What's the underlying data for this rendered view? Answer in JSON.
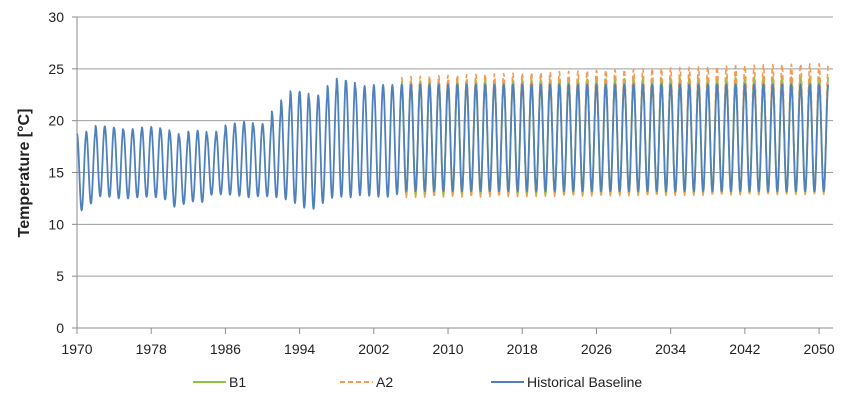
{
  "chart_data": {
    "type": "line",
    "title": "",
    "xlabel": "",
    "ylabel": "Temperature [°C]",
    "xlim": [
      1970,
      2051.5
    ],
    "ylim": [
      0,
      30
    ],
    "x_ticks": [
      1970,
      1978,
      1986,
      1994,
      2002,
      2010,
      2018,
      2026,
      2034,
      2042,
      2050
    ],
    "y_ticks": [
      0,
      5,
      10,
      15,
      20,
      25,
      30
    ],
    "grid": "horizontal",
    "legend_position": "bottom",
    "series": [
      {
        "name": "B1",
        "color": "#8dc540",
        "style": "solid",
        "x_range": [
          2005,
          2051
        ],
        "annual_peaks": [
          [
            2005,
            23.8
          ],
          [
            2015,
            23.9
          ],
          [
            2025,
            24.0
          ],
          [
            2035,
            24.1
          ],
          [
            2045,
            24.2
          ],
          [
            2051,
            24.2
          ]
        ],
        "annual_troughs": [
          [
            2005,
            12.8
          ],
          [
            2051,
            13.0
          ]
        ]
      },
      {
        "name": "A2",
        "color": "#f79a53",
        "style": "dashed",
        "x_range": [
          2005,
          2051
        ],
        "annual_peaks": [
          [
            2005,
            24.2
          ],
          [
            2015,
            24.5
          ],
          [
            2025,
            24.8
          ],
          [
            2035,
            25.1
          ],
          [
            2045,
            25.4
          ],
          [
            2051,
            25.5
          ]
        ],
        "annual_troughs": [
          [
            2005,
            12.6
          ],
          [
            2051,
            12.9
          ]
        ]
      },
      {
        "name": "Historical Baseline",
        "color": "#4f81bd",
        "style": "solid",
        "annual_peaks": [
          [
            1970,
            19.2
          ],
          [
            1971,
            18.3
          ],
          [
            1972,
            19.6
          ],
          [
            1973,
            19.4
          ],
          [
            1974,
            19.5
          ],
          [
            1975,
            19.1
          ],
          [
            1976,
            19.1
          ],
          [
            1977,
            19.3
          ],
          [
            1978,
            19.4
          ],
          [
            1979,
            19.4
          ],
          [
            1980,
            19.0
          ],
          [
            1981,
            18.7
          ],
          [
            1982,
            18.3
          ],
          [
            1983,
            19.6
          ],
          [
            1984,
            18.5
          ],
          [
            1985,
            18.8
          ],
          [
            1986,
            19.1
          ],
          [
            1987,
            20.0
          ],
          [
            1988,
            19.5
          ],
          [
            1989,
            20.3
          ],
          [
            1990,
            18.8
          ],
          [
            1991,
            20.6
          ],
          [
            1992,
            21.2
          ],
          [
            1993,
            22.7
          ],
          [
            1994,
            23.0
          ],
          [
            1995,
            22.6
          ],
          [
            1996,
            21.8
          ],
          [
            1997,
            23.1
          ],
          [
            1998,
            23.6
          ],
          [
            1999,
            24.5
          ],
          [
            2000,
            23.2
          ],
          [
            2001,
            23.3
          ],
          [
            2002,
            23.4
          ],
          [
            2003,
            23.5
          ],
          [
            2004,
            23.4
          ],
          [
            2005,
            23.5
          ],
          [
            2051,
            23.5
          ]
        ],
        "annual_troughs": [
          [
            1970,
            11.5
          ],
          [
            1971,
            11.2
          ],
          [
            1972,
            12.8
          ],
          [
            1973,
            12.6
          ],
          [
            1974,
            12.7
          ],
          [
            1975,
            12.3
          ],
          [
            1976,
            12.7
          ],
          [
            1977,
            12.5
          ],
          [
            1978,
            12.8
          ],
          [
            1979,
            12.4
          ],
          [
            1980,
            12.4
          ],
          [
            1981,
            11.0
          ],
          [
            1982,
            12.9
          ],
          [
            1983,
            11.5
          ],
          [
            1984,
            12.8
          ],
          [
            1985,
            12.9
          ],
          [
            1986,
            12.9
          ],
          [
            1987,
            12.8
          ],
          [
            1988,
            12.7
          ],
          [
            1989,
            12.5
          ],
          [
            1990,
            12.9
          ],
          [
            1991,
            12.5
          ],
          [
            1992,
            12.7
          ],
          [
            1993,
            12.1
          ],
          [
            1994,
            12.0
          ],
          [
            1995,
            11.2
          ],
          [
            1996,
            11.8
          ],
          [
            1997,
            12.3
          ],
          [
            1998,
            12.8
          ],
          [
            1999,
            12.5
          ],
          [
            2000,
            12.7
          ],
          [
            2001,
            12.9
          ],
          [
            2002,
            12.6
          ],
          [
            2003,
            12.7
          ],
          [
            2004,
            12.6
          ],
          [
            2005,
            13.2
          ],
          [
            2051,
            13.2
          ]
        ]
      }
    ]
  }
}
